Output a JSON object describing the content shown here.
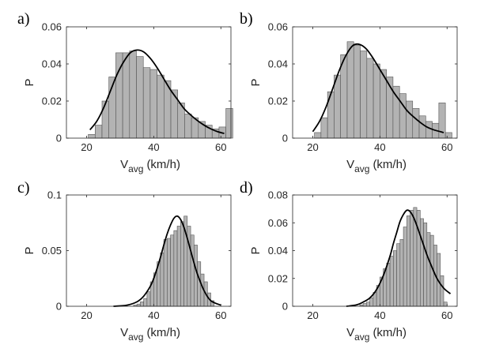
{
  "style": {
    "bar_fill": "#b3b3b3",
    "bar_stroke": "#555555",
    "curve_color": "#000000",
    "axis_color": "#262626"
  },
  "chart_data": [
    {
      "panel": "a)",
      "type": "bar",
      "xlabel": "V",
      "xlabel_sub": "avg",
      "xlabel_units": "(km/h)",
      "ylabel": "P",
      "xlim": [
        14,
        63
      ],
      "ylim": [
        0,
        0.06
      ],
      "xticks": [
        20,
        40,
        60
      ],
      "xtick_labels": [
        "20",
        "40",
        "60"
      ],
      "yticks": [
        0,
        0.02,
        0.04,
        0.06
      ],
      "ytick_labels": [
        "0",
        "0.02",
        "0.04",
        "0.06"
      ],
      "bin_start": 20.5,
      "bin_width": 2.05,
      "values": [
        0.002,
        0.007,
        0.02,
        0.033,
        0.046,
        0.046,
        0.047,
        0.044,
        0.038,
        0.037,
        0.034,
        0.031,
        0.026,
        0.019,
        0.013,
        0.011,
        0.009,
        0.007,
        0.005,
        0.006,
        0.016
      ],
      "fit": {
        "x": [
          21,
          23,
          25,
          27,
          29,
          31,
          33,
          35,
          37,
          39,
          41,
          43,
          45,
          47,
          49,
          51,
          53,
          55,
          57,
          59,
          61
        ],
        "y": [
          0.0045,
          0.009,
          0.016,
          0.025,
          0.034,
          0.041,
          0.046,
          0.0475,
          0.0465,
          0.043,
          0.038,
          0.032,
          0.026,
          0.021,
          0.016,
          0.0125,
          0.0095,
          0.007,
          0.005,
          0.0035,
          0.0025
        ]
      }
    },
    {
      "panel": "b)",
      "type": "bar",
      "xlabel": "V",
      "xlabel_sub": "avg",
      "xlabel_units": "(km/h)",
      "ylabel": "P",
      "xlim": [
        14,
        63
      ],
      "ylim": [
        0,
        0.06
      ],
      "xticks": [
        20,
        40,
        60
      ],
      "xtick_labels": [
        "20",
        "40",
        "60"
      ],
      "yticks": [
        0,
        0.02,
        0.04,
        0.06
      ],
      "ytick_labels": [
        "0",
        "0.02",
        "0.04",
        "0.06"
      ],
      "bin_start": 20.5,
      "bin_width": 1.95,
      "values": [
        0.003,
        0.011,
        0.025,
        0.034,
        0.045,
        0.052,
        0.05,
        0.047,
        0.043,
        0.04,
        0.037,
        0.033,
        0.028,
        0.024,
        0.02,
        0.016,
        0.012,
        0.009,
        0.008,
        0.019,
        0.003
      ],
      "fit": {
        "x": [
          20,
          22,
          24,
          26,
          28,
          30,
          32,
          34,
          36,
          38,
          40,
          42,
          44,
          46,
          48,
          50,
          52,
          54,
          56,
          58,
          59
        ],
        "y": [
          0.0035,
          0.009,
          0.017,
          0.027,
          0.037,
          0.045,
          0.05,
          0.0505,
          0.048,
          0.043,
          0.037,
          0.031,
          0.025,
          0.02,
          0.015,
          0.0115,
          0.0085,
          0.006,
          0.0045,
          0.0035,
          0.003
        ]
      }
    },
    {
      "panel": "c)",
      "type": "bar",
      "xlabel": "V",
      "xlabel_sub": "avg",
      "xlabel_units": "(km/h)",
      "ylabel": "P",
      "xlim": [
        14,
        63
      ],
      "ylim": [
        0,
        0.1
      ],
      "xticks": [
        20,
        40,
        60
      ],
      "xtick_labels": [
        "20",
        "40",
        "60"
      ],
      "yticks": [
        0,
        0.05,
        0.1
      ],
      "ytick_labels": [
        "0",
        "0.05",
        "0.1"
      ],
      "bin_start": 34,
      "bin_width": 1.0,
      "values": [
        0.001,
        0.002,
        0.004,
        0.007,
        0.013,
        0.022,
        0.03,
        0.04,
        0.048,
        0.06,
        0.061,
        0.064,
        0.068,
        0.072,
        0.076,
        0.081,
        0.072,
        0.064,
        0.055,
        0.04,
        0.029,
        0.022,
        0.012,
        0.005
      ],
      "fit": {
        "x": [
          28,
          32,
          35,
          37,
          39,
          40,
          41,
          42,
          43,
          44,
          45,
          46,
          47,
          48,
          49,
          50,
          51,
          52,
          53,
          55,
          57,
          60
        ],
        "y": [
          0.0,
          0.001,
          0.004,
          0.009,
          0.018,
          0.025,
          0.034,
          0.044,
          0.055,
          0.065,
          0.073,
          0.079,
          0.081,
          0.078,
          0.071,
          0.061,
          0.05,
          0.039,
          0.029,
          0.014,
          0.005,
          0.001
        ]
      }
    },
    {
      "panel": "d)",
      "type": "bar",
      "xlabel": "V",
      "xlabel_sub": "avg",
      "xlabel_units": "(km/h)",
      "ylabel": "P",
      "xlim": [
        14,
        63
      ],
      "ylim": [
        0,
        0.08
      ],
      "xticks": [
        20,
        40,
        60
      ],
      "xtick_labels": [
        "20",
        "40",
        "60"
      ],
      "yticks": [
        0,
        0.02,
        0.04,
        0.06,
        0.08
      ],
      "ytick_labels": [
        "0",
        "0.02",
        "0.04",
        "0.06",
        "0.08"
      ],
      "bin_start": 34,
      "bin_width": 1.0,
      "values": [
        0.001,
        0.002,
        0.003,
        0.006,
        0.01,
        0.015,
        0.021,
        0.027,
        0.031,
        0.036,
        0.04,
        0.045,
        0.048,
        0.057,
        0.065,
        0.069,
        0.071,
        0.069,
        0.063,
        0.06,
        0.053,
        0.051,
        0.044,
        0.038,
        0.022,
        0.003
      ],
      "fit": {
        "x": [
          30,
          33,
          35,
          37,
          39,
          41,
          43,
          44,
          45,
          46,
          47,
          48,
          49,
          50,
          51,
          52,
          53,
          54,
          55,
          57,
          59,
          61
        ],
        "y": [
          0.0,
          0.001,
          0.003,
          0.006,
          0.012,
          0.022,
          0.036,
          0.045,
          0.053,
          0.061,
          0.066,
          0.069,
          0.068,
          0.064,
          0.058,
          0.051,
          0.044,
          0.037,
          0.031,
          0.02,
          0.013,
          0.009
        ]
      }
    }
  ]
}
